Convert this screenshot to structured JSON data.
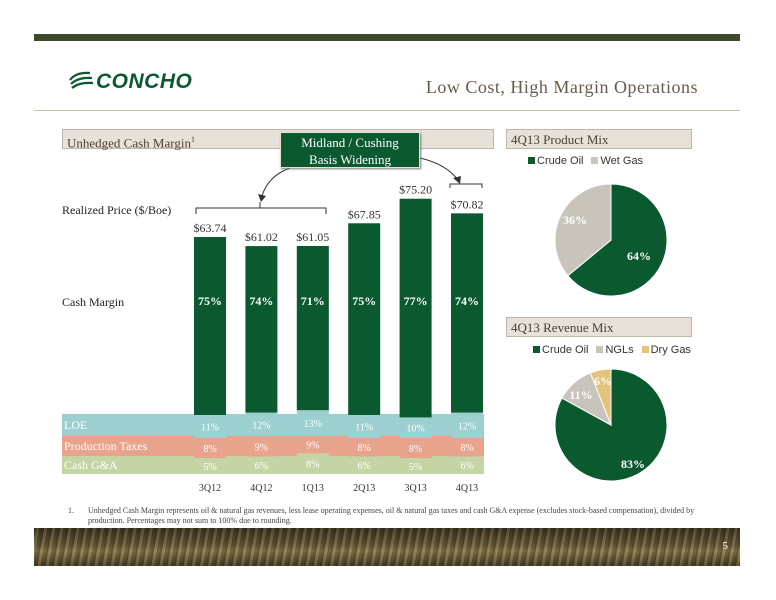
{
  "header": {
    "company": "CONCHO",
    "title": "Low Cost, High Margin Operations"
  },
  "left_panel": {
    "title": "Unhedged Cash Margin",
    "footnote_marker": "1",
    "callout": [
      "Midland / Cushing",
      "Basis Widening"
    ]
  },
  "row_labels": {
    "realized_price": "Realized Price ($/Boe)",
    "cash_margin": "Cash Margin",
    "loe": "LOE",
    "production_taxes": "Production Taxes",
    "cash_ga": "Cash G&A"
  },
  "chart_data": [
    {
      "type": "bar",
      "categories": [
        "3Q12",
        "4Q12",
        "1Q13",
        "2Q13",
        "3Q13",
        "4Q13"
      ],
      "series": [
        {
          "name": "Realized Price ($/Boe)",
          "values": [
            63.74,
            61.02,
            61.05,
            67.85,
            75.2,
            70.82
          ],
          "labels": [
            "$63.74",
            "$61.02",
            "$61.05",
            "$67.85",
            "$75.20",
            "$70.82"
          ]
        },
        {
          "name": "Cash Margin",
          "values": [
            75,
            74,
            71,
            75,
            77,
            74
          ],
          "labels": [
            "75%",
            "74%",
            "71%",
            "75%",
            "77%",
            "74%"
          ]
        },
        {
          "name": "LOE",
          "values": [
            11,
            12,
            13,
            11,
            10,
            12
          ],
          "labels": [
            "11%",
            "12%",
            "13%",
            "11%",
            "10%",
            "12%"
          ]
        },
        {
          "name": "Production Taxes",
          "values": [
            8,
            9,
            9,
            8,
            8,
            8
          ],
          "labels": [
            "8%",
            "9%",
            "9%",
            "8%",
            "8%",
            "8%"
          ]
        },
        {
          "name": "Cash G&A",
          "values": [
            5,
            6,
            8,
            6,
            5,
            6
          ],
          "labels": [
            "5%",
            "6%",
            "8%",
            "6%",
            "5%",
            "6%"
          ]
        }
      ],
      "colors": {
        "price_bar": "#0b5a2f",
        "loe": "#9ccfcf",
        "production_taxes": "#e8a38c",
        "cash_ga": "#c4d4a4"
      }
    },
    {
      "type": "pie",
      "title": "4Q13 Product Mix",
      "labels": [
        "Crude Oil",
        "Wet Gas"
      ],
      "values": [
        64,
        36
      ],
      "value_labels": [
        "64%",
        "36%"
      ],
      "colors": [
        "#0b5a2f",
        "#c8c4bc"
      ],
      "legend": "top"
    },
    {
      "type": "pie",
      "title": "4Q13 Revenue Mix",
      "labels": [
        "Crude Oil",
        "NGLs",
        "Dry Gas"
      ],
      "values": [
        83,
        11,
        6
      ],
      "value_labels": [
        "83%",
        "11%",
        "6%"
      ],
      "colors": [
        "#0b5a2f",
        "#c8c4bc",
        "#e3c27a"
      ],
      "legend": "top"
    }
  ],
  "footnote": {
    "number": "1.",
    "text": "Unhedged Cash Margin represents oil & natural gas revenues, less lease operating expenses, oil & natural gas taxes and cash G&A expense (excludes stock-based compensation), divided by production. Percentages may not sum to 100% due to rounding."
  },
  "page_number": "5"
}
